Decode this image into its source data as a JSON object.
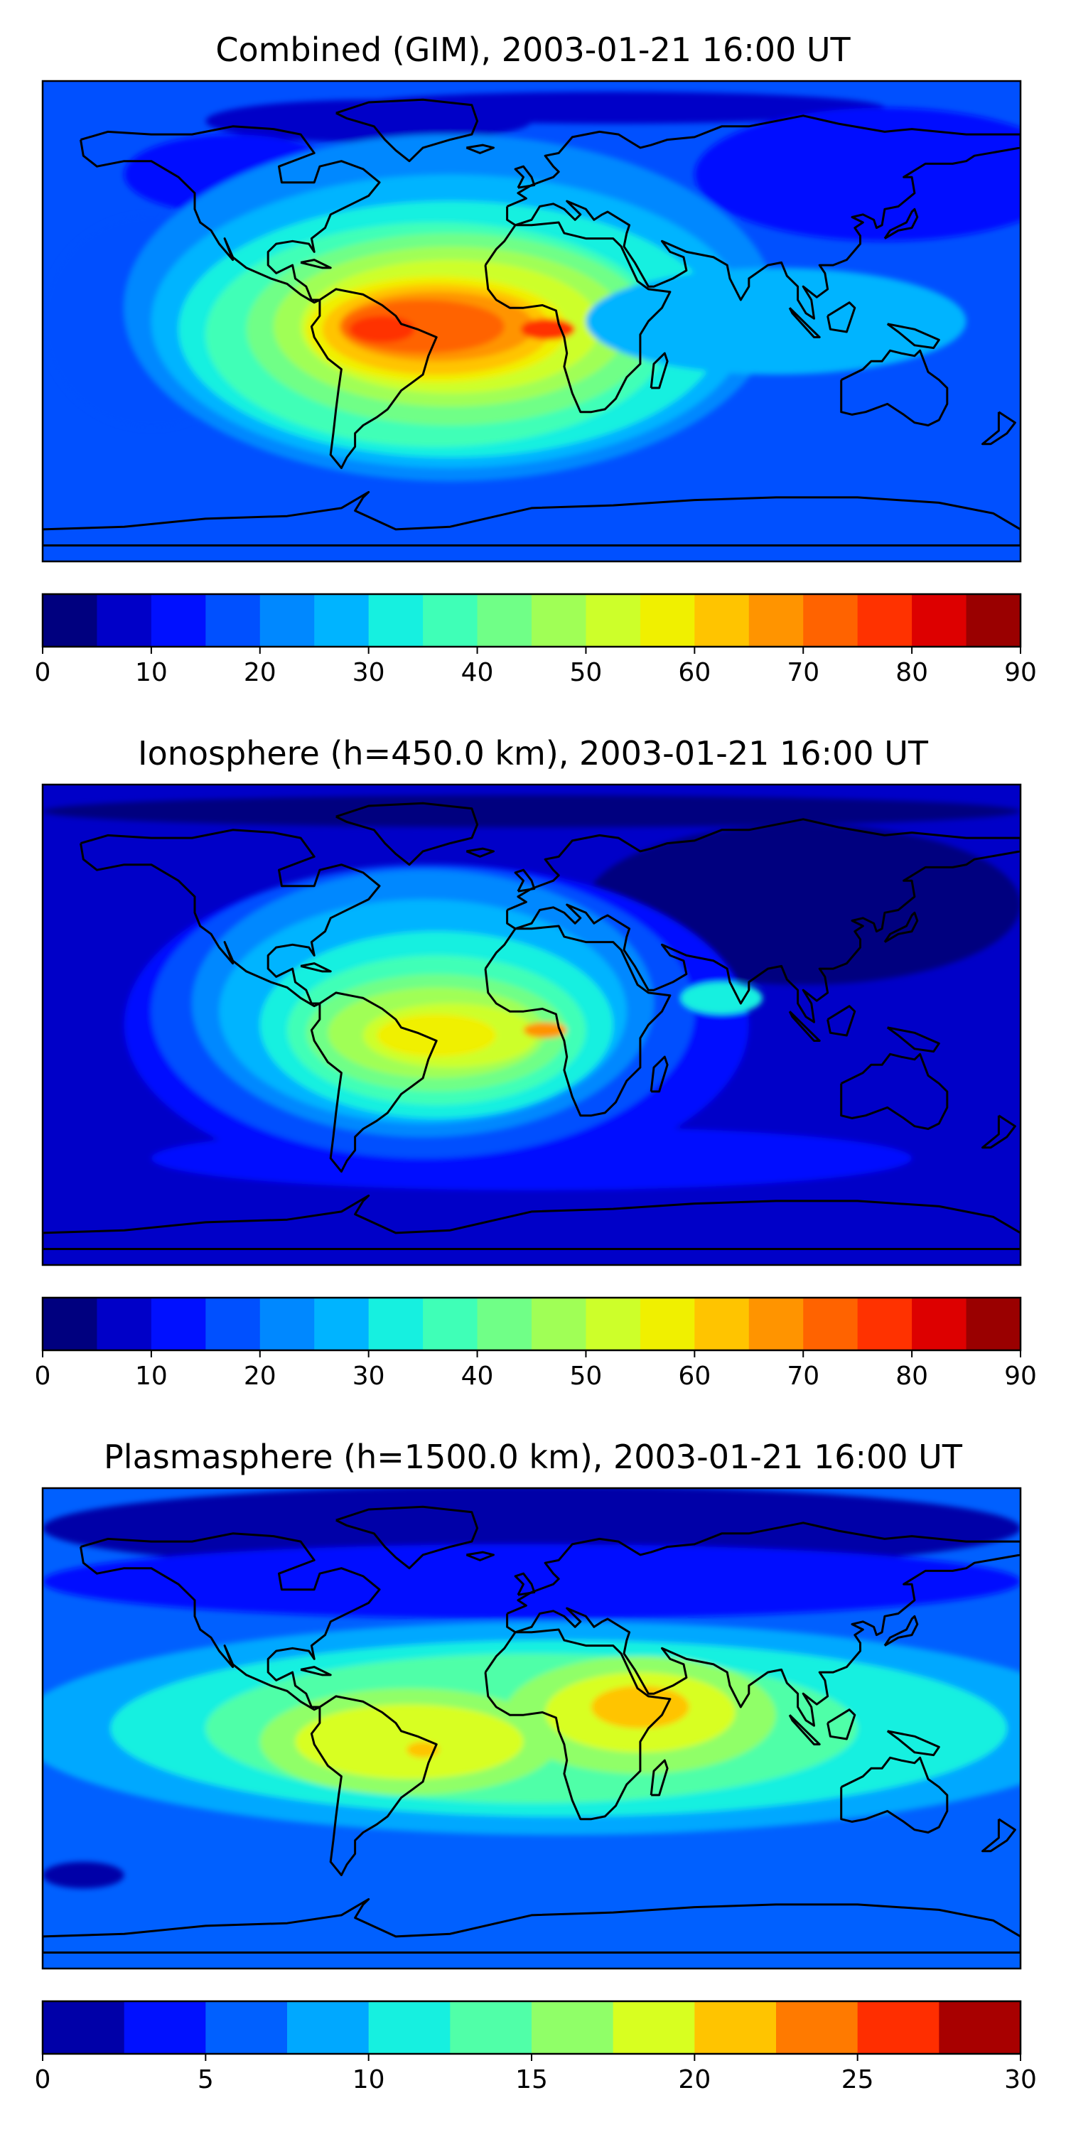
{
  "figure": {
    "panels": [
      {
        "title": "Combined (GIM), 2003-01-21 16:00 UT",
        "colorbar": {
          "ticks": [
            "0",
            "10",
            "20",
            "30",
            "40",
            "50",
            "60",
            "70",
            "80",
            "90"
          ],
          "colors": [
            "#00007f",
            "#0000c8",
            "#0010ff",
            "#0050ff",
            "#0088ff",
            "#00b4ff",
            "#16f0e0",
            "#3fffb7",
            "#70ff87",
            "#a0ff56",
            "#cdff2a",
            "#f0f000",
            "#ffc400",
            "#ff9400",
            "#ff6300",
            "#ff3200",
            "#dd0000",
            "#9a0000"
          ]
        },
        "map": {
          "base_color": "#0050ff",
          "blobs": [
            {
              "level": 1,
              "lon": -60,
              "lat": 75,
              "rx": 60,
              "ry": 8
            },
            {
              "level": 1,
              "lon": 30,
              "lat": 80,
              "rx": 100,
              "ry": 6
            },
            {
              "level": 2,
              "lon": 130,
              "lat": 55,
              "rx": 70,
              "ry": 25
            },
            {
              "level": 2,
              "lon": -110,
              "lat": 55,
              "rx": 40,
              "ry": 15
            },
            {
              "level": 3,
              "lon": -140,
              "lat": 0,
              "rx": 40,
              "ry": 40
            },
            {
              "level": 4,
              "lon": -30,
              "lat": 5,
              "rx": 120,
              "ry": 65
            },
            {
              "level": 5,
              "lon": -30,
              "lat": 0,
              "rx": 110,
              "ry": 55
            },
            {
              "level": 6,
              "lon": -30,
              "lat": -3,
              "rx": 100,
              "ry": 48
            },
            {
              "level": 7,
              "lon": -35,
              "lat": -5,
              "rx": 85,
              "ry": 42
            },
            {
              "level": 8,
              "lon": -30,
              "lat": -3,
              "rx": 75,
              "ry": 36
            },
            {
              "level": 9,
              "lon": -30,
              "lat": -2,
              "rx": 65,
              "ry": 30
            },
            {
              "level": 10,
              "lon": -30,
              "lat": -2,
              "rx": 55,
              "ry": 25
            },
            {
              "level": 11,
              "lon": -35,
              "lat": -3,
              "rx": 48,
              "ry": 20
            },
            {
              "level": 12,
              "lon": -35,
              "lat": -3,
              "rx": 42,
              "ry": 17
            },
            {
              "level": 13,
              "lon": -35,
              "lat": -2,
              "rx": 36,
              "ry": 13
            },
            {
              "level": 14,
              "lon": -40,
              "lat": -2,
              "rx": 30,
              "ry": 10
            },
            {
              "level": 15,
              "lon": -55,
              "lat": -3,
              "rx": 12,
              "ry": 5
            },
            {
              "level": 15,
              "lon": 6,
              "lat": -3,
              "rx": 10,
              "ry": 4
            },
            {
              "level": 5,
              "lon": 90,
              "lat": 0,
              "rx": 70,
              "ry": 20
            }
          ]
        }
      },
      {
        "title": "Ionosphere  (h=450.0 km), 2003-01-21 16:00 UT",
        "colorbar": {
          "ticks": [
            "0",
            "10",
            "20",
            "30",
            "40",
            "50",
            "60",
            "70",
            "80",
            "90"
          ],
          "colors": [
            "#00007f",
            "#0000c8",
            "#0010ff",
            "#0050ff",
            "#0088ff",
            "#00b4ff",
            "#16f0e0",
            "#3fffb7",
            "#70ff87",
            "#a0ff56",
            "#cdff2a",
            "#f0f000",
            "#ffc400",
            "#ff9400",
            "#ff6300",
            "#ff3200",
            "#dd0000",
            "#9a0000"
          ]
        },
        "map": {
          "base_color": "#0000c8",
          "blobs": [
            {
              "level": 0,
              "lon": 100,
              "lat": 45,
              "rx": 80,
              "ry": 30
            },
            {
              "level": 0,
              "lon": 0,
              "lat": 80,
              "rx": 180,
              "ry": 6
            },
            {
              "level": 2,
              "lon": 0,
              "lat": -50,
              "rx": 140,
              "ry": 12
            },
            {
              "level": 2,
              "lon": -35,
              "lat": 0,
              "rx": 115,
              "ry": 60
            },
            {
              "level": 3,
              "lon": -40,
              "lat": 5,
              "rx": 100,
              "ry": 55
            },
            {
              "level": 4,
              "lon": -40,
              "lat": 8,
              "rx": 85,
              "ry": 50
            },
            {
              "level": 5,
              "lon": -40,
              "lat": 5,
              "rx": 75,
              "ry": 42
            },
            {
              "level": 6,
              "lon": -35,
              "lat": 0,
              "rx": 65,
              "ry": 35
            },
            {
              "level": 7,
              "lon": -35,
              "lat": -2,
              "rx": 55,
              "ry": 28
            },
            {
              "level": 8,
              "lon": -35,
              "lat": -3,
              "rx": 48,
              "ry": 22
            },
            {
              "level": 9,
              "lon": -35,
              "lat": -3,
              "rx": 40,
              "ry": 17
            },
            {
              "level": 10,
              "lon": -30,
              "lat": -4,
              "rx": 32,
              "ry": 12
            },
            {
              "level": 11,
              "lon": -35,
              "lat": -4,
              "rx": 22,
              "ry": 8
            },
            {
              "level": 13,
              "lon": 5,
              "lat": -2,
              "rx": 8,
              "ry": 3
            },
            {
              "level": 6,
              "lon": 70,
              "lat": 10,
              "rx": 15,
              "ry": 6
            }
          ]
        }
      },
      {
        "title": "Plasmasphere (h=1500.0 km), 2003-01-21 16:00 UT",
        "colorbar": {
          "ticks": [
            "0",
            "5",
            "10",
            "15",
            "20",
            "25",
            "30"
          ],
          "colors": [
            "#0000a8",
            "#0010ff",
            "#0060ff",
            "#00a8ff",
            "#16f0e0",
            "#50ffa8",
            "#90ff68",
            "#d8ff20",
            "#ffc400",
            "#ff7a00",
            "#ff2e00",
            "#a80000"
          ]
        },
        "map": {
          "base_color": "#0060ff",
          "blobs": [
            {
              "level": 0,
              "lon": 0,
              "lat": 75,
              "rx": 180,
              "ry": 16
            },
            {
              "level": 0,
              "lon": -165,
              "lat": -55,
              "rx": 15,
              "ry": 5
            },
            {
              "level": 1,
              "lon": 0,
              "lat": 55,
              "rx": 180,
              "ry": 14
            },
            {
              "level": 3,
              "lon": 10,
              "lat": 0,
              "rx": 200,
              "ry": 40
            },
            {
              "level": 4,
              "lon": 10,
              "lat": 0,
              "rx": 165,
              "ry": 33
            },
            {
              "level": 5,
              "lon": 0,
              "lat": 0,
              "rx": 120,
              "ry": 28
            },
            {
              "level": 6,
              "lon": -45,
              "lat": -5,
              "rx": 55,
              "ry": 20
            },
            {
              "level": 6,
              "lon": 40,
              "lat": 5,
              "rx": 50,
              "ry": 22
            },
            {
              "level": 7,
              "lon": -45,
              "lat": -5,
              "rx": 42,
              "ry": 14
            },
            {
              "level": 7,
              "lon": 40,
              "lat": 6,
              "rx": 35,
              "ry": 15
            },
            {
              "level": 8,
              "lon": 40,
              "lat": 8,
              "rx": 18,
              "ry": 8
            },
            {
              "level": 8,
              "lon": -40,
              "lat": -8,
              "rx": 6,
              "ry": 3
            }
          ]
        }
      }
    ]
  }
}
